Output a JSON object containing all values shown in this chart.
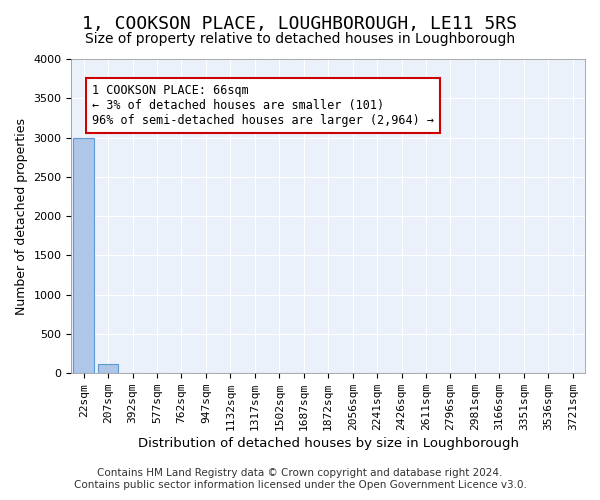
{
  "title": "1, COOKSON PLACE, LOUGHBOROUGH, LE11 5RS",
  "subtitle": "Size of property relative to detached houses in Loughborough",
  "xlabel": "Distribution of detached houses by size in Loughborough",
  "ylabel": "Number of detached properties",
  "footer_line1": "Contains HM Land Registry data © Crown copyright and database right 2024.",
  "footer_line2": "Contains public sector information licensed under the Open Government Licence v3.0.",
  "bin_labels": [
    "22sqm",
    "207sqm",
    "392sqm",
    "577sqm",
    "762sqm",
    "947sqm",
    "1132sqm",
    "1317sqm",
    "1502sqm",
    "1687sqm",
    "1872sqm",
    "2056sqm",
    "2241sqm",
    "2426sqm",
    "2611sqm",
    "2796sqm",
    "2981sqm",
    "3166sqm",
    "3351sqm",
    "3536sqm",
    "3721sqm"
  ],
  "bar_values": [
    3000,
    120,
    0,
    0,
    0,
    0,
    0,
    0,
    0,
    0,
    0,
    0,
    0,
    0,
    0,
    0,
    0,
    0,
    0,
    0,
    0
  ],
  "bar_color": "#aec6e8",
  "bar_edge_color": "#5b9bd5",
  "background_color": "#eaf1fb",
  "grid_color": "#ffffff",
  "annotation_text": "1 COOKSON PLACE: 66sqm\n← 3% of detached houses are smaller (101)\n96% of semi-detached houses are larger (2,964) →",
  "annotation_box_color": "#ffffff",
  "annotation_box_edge_color": "#cc0000",
  "ylim": [
    0,
    4000
  ],
  "yticks": [
    0,
    500,
    1000,
    1500,
    2000,
    2500,
    3000,
    3500,
    4000
  ],
  "title_fontsize": 13,
  "subtitle_fontsize": 10,
  "ylabel_fontsize": 9,
  "xlabel_fontsize": 9.5,
  "tick_fontsize": 8,
  "annotation_fontsize": 8.5,
  "footer_fontsize": 7.5
}
